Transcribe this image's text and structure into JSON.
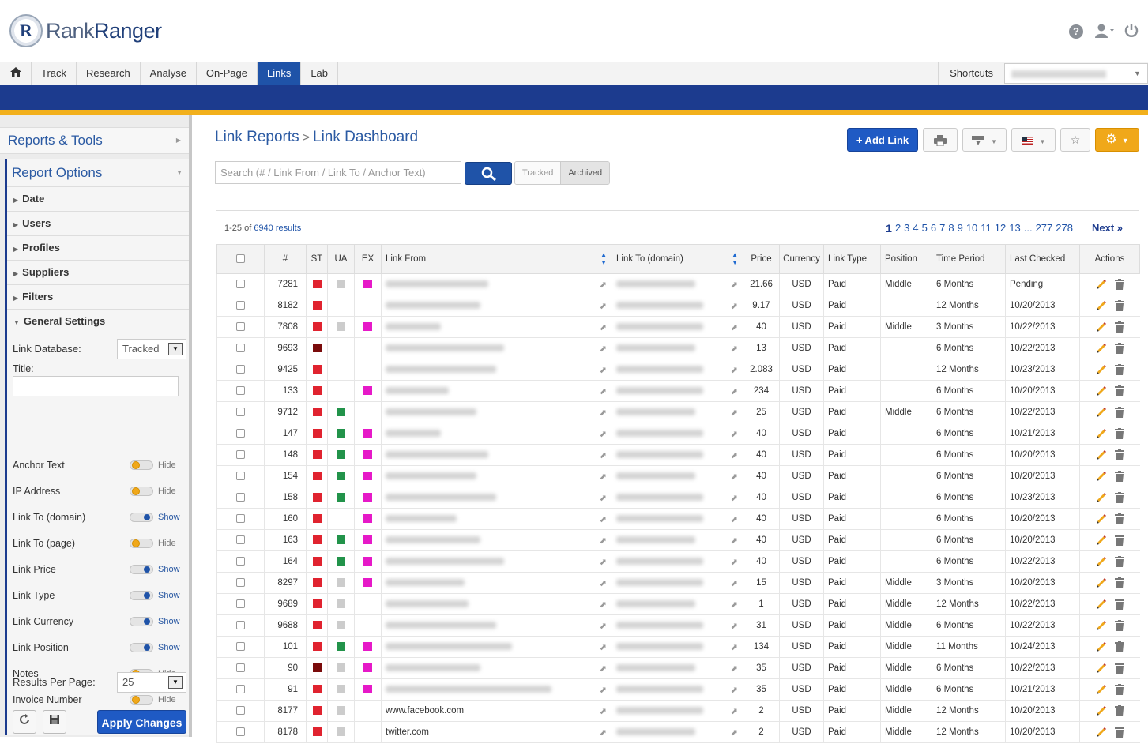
{
  "app": {
    "brand_prefix": "Rank",
    "brand_suffix": "Ranger",
    "logo_letter": "R"
  },
  "nav": {
    "items": [
      "Track",
      "Research",
      "Analyse",
      "On-Page",
      "Links",
      "Lab"
    ],
    "active": "Links",
    "shortcuts": "Shortcuts"
  },
  "sidebar": {
    "reports_tools": "Reports & Tools",
    "report_options": "Report Options",
    "sections": [
      "Date",
      "Users",
      "Profiles",
      "Suppliers",
      "Filters"
    ],
    "general_settings": "General Settings",
    "link_database_label": "Link Database:",
    "link_database_value": "Tracked",
    "title_label": "Title:",
    "toggles": [
      {
        "label": "Anchor Text",
        "state": "Hide"
      },
      {
        "label": "IP Address",
        "state": "Hide"
      },
      {
        "label": "Link To (domain)",
        "state": "Show"
      },
      {
        "label": "Link To (page)",
        "state": "Hide"
      },
      {
        "label": "Link Price",
        "state": "Show"
      },
      {
        "label": "Link Type",
        "state": "Show"
      },
      {
        "label": "Link Currency",
        "state": "Show"
      },
      {
        "label": "Link Position",
        "state": "Show"
      },
      {
        "label": "Notes",
        "state": "Hide"
      },
      {
        "label": "Invoice Number",
        "state": "Hide"
      }
    ],
    "results_per_page_label": "Results Per Page:",
    "results_per_page_value": "25",
    "apply_label": "Apply Changes"
  },
  "main": {
    "breadcrumb_parent": "Link Reports",
    "breadcrumb_sep": ">",
    "breadcrumb_current": "Link Dashboard",
    "add_link_label": "+ Add Link",
    "search_placeholder": "Search (# / Link From / Link To / Anchor Text)",
    "filter_tracked": "Tracked",
    "filter_archived": "Archived",
    "results_prefix": "1-25 of",
    "results_total": "6940 results",
    "pages": [
      "1",
      "2",
      "3",
      "4",
      "5",
      "6",
      "7",
      "8",
      "9",
      "10",
      "11",
      "12",
      "13",
      "...",
      "277",
      "278"
    ],
    "next_label": "Next »",
    "columns": [
      "#",
      "ST",
      "UA",
      "EX",
      "Link From",
      "Link To (domain)",
      "Price",
      "Currency",
      "Link Type",
      "Position",
      "Time Period",
      "Last Checked",
      "Actions"
    ],
    "colors": {
      "st_red": "#e0232f",
      "st_dark": "#7a0b0b",
      "ua_gray": "#cccccc",
      "ua_green": "#22934a",
      "ex_pink": "#e619c8",
      "brand_blue": "#1f53a8",
      "accent_gold": "#f2b01c"
    },
    "rows": [
      {
        "id": "7281",
        "st": "red",
        "ua": "gray",
        "ex": "pink",
        "from": "",
        "price": "21.66",
        "currency": "USD",
        "type": "Paid",
        "position": "Middle",
        "period": "6 Months",
        "checked": "Pending"
      },
      {
        "id": "8182",
        "st": "red",
        "ua": "",
        "ex": "",
        "from": "",
        "price": "9.17",
        "currency": "USD",
        "type": "Paid",
        "position": "",
        "period": "12 Months",
        "checked": "10/20/2013"
      },
      {
        "id": "7808",
        "st": "red",
        "ua": "gray",
        "ex": "pink",
        "from": "",
        "price": "40",
        "currency": "USD",
        "type": "Paid",
        "position": "Middle",
        "period": "3 Months",
        "checked": "10/22/2013"
      },
      {
        "id": "9693",
        "st": "dark",
        "ua": "",
        "ex": "",
        "from": "",
        "price": "13",
        "currency": "USD",
        "type": "Paid",
        "position": "",
        "period": "6 Months",
        "checked": "10/22/2013"
      },
      {
        "id": "9425",
        "st": "red",
        "ua": "",
        "ex": "",
        "from": "",
        "price": "2.083",
        "currency": "USD",
        "type": "Paid",
        "position": "",
        "period": "12 Months",
        "checked": "10/23/2013"
      },
      {
        "id": "133",
        "st": "red",
        "ua": "",
        "ex": "pink",
        "from": "",
        "price": "234",
        "currency": "USD",
        "type": "Paid",
        "position": "",
        "period": "6 Months",
        "checked": "10/20/2013"
      },
      {
        "id": "9712",
        "st": "red",
        "ua": "green",
        "ex": "",
        "from": "",
        "price": "25",
        "currency": "USD",
        "type": "Paid",
        "position": "Middle",
        "period": "6 Months",
        "checked": "10/22/2013"
      },
      {
        "id": "147",
        "st": "red",
        "ua": "green",
        "ex": "pink",
        "from": "",
        "price": "40",
        "currency": "USD",
        "type": "Paid",
        "position": "",
        "period": "6 Months",
        "checked": "10/21/2013"
      },
      {
        "id": "148",
        "st": "red",
        "ua": "green",
        "ex": "pink",
        "from": "",
        "price": "40",
        "currency": "USD",
        "type": "Paid",
        "position": "",
        "period": "6 Months",
        "checked": "10/20/2013"
      },
      {
        "id": "154",
        "st": "red",
        "ua": "green",
        "ex": "pink",
        "from": "",
        "price": "40",
        "currency": "USD",
        "type": "Paid",
        "position": "",
        "period": "6 Months",
        "checked": "10/20/2013"
      },
      {
        "id": "158",
        "st": "red",
        "ua": "green",
        "ex": "pink",
        "from": "",
        "price": "40",
        "currency": "USD",
        "type": "Paid",
        "position": "",
        "period": "6 Months",
        "checked": "10/23/2013"
      },
      {
        "id": "160",
        "st": "red",
        "ua": "",
        "ex": "pink",
        "from": "",
        "price": "40",
        "currency": "USD",
        "type": "Paid",
        "position": "",
        "period": "6 Months",
        "checked": "10/20/2013"
      },
      {
        "id": "163",
        "st": "red",
        "ua": "green",
        "ex": "pink",
        "from": "",
        "price": "40",
        "currency": "USD",
        "type": "Paid",
        "position": "",
        "period": "6 Months",
        "checked": "10/20/2013"
      },
      {
        "id": "164",
        "st": "red",
        "ua": "green",
        "ex": "pink",
        "from": "",
        "price": "40",
        "currency": "USD",
        "type": "Paid",
        "position": "",
        "period": "6 Months",
        "checked": "10/22/2013"
      },
      {
        "id": "8297",
        "st": "red",
        "ua": "gray",
        "ex": "pink",
        "from": "",
        "price": "15",
        "currency": "USD",
        "type": "Paid",
        "position": "Middle",
        "period": "3 Months",
        "checked": "10/20/2013"
      },
      {
        "id": "9689",
        "st": "red",
        "ua": "gray",
        "ex": "",
        "from": "",
        "price": "1",
        "currency": "USD",
        "type": "Paid",
        "position": "Middle",
        "period": "12 Months",
        "checked": "10/22/2013"
      },
      {
        "id": "9688",
        "st": "red",
        "ua": "gray",
        "ex": "",
        "from": "",
        "price": "31",
        "currency": "USD",
        "type": "Paid",
        "position": "Middle",
        "period": "6 Months",
        "checked": "10/22/2013"
      },
      {
        "id": "101",
        "st": "red",
        "ua": "green",
        "ex": "pink",
        "from": "",
        "price": "134",
        "currency": "USD",
        "type": "Paid",
        "position": "Middle",
        "period": "11 Months",
        "checked": "10/24/2013"
      },
      {
        "id": "90",
        "st": "dark",
        "ua": "gray",
        "ex": "pink",
        "from": "",
        "price": "35",
        "currency": "USD",
        "type": "Paid",
        "position": "Middle",
        "period": "6 Months",
        "checked": "10/22/2013"
      },
      {
        "id": "91",
        "st": "red",
        "ua": "gray",
        "ex": "pink",
        "from": "",
        "price": "35",
        "currency": "USD",
        "type": "Paid",
        "position": "Middle",
        "period": "6 Months",
        "checked": "10/21/2013"
      },
      {
        "id": "8177",
        "st": "red",
        "ua": "gray",
        "ex": "",
        "from": "www.facebook.com",
        "price": "2",
        "currency": "USD",
        "type": "Paid",
        "position": "Middle",
        "period": "12 Months",
        "checked": "10/20/2013"
      },
      {
        "id": "8178",
        "st": "red",
        "ua": "gray",
        "ex": "",
        "from": "twitter.com",
        "price": "2",
        "currency": "USD",
        "type": "Paid",
        "position": "Middle",
        "period": "12 Months",
        "checked": "10/20/2013"
      }
    ]
  }
}
